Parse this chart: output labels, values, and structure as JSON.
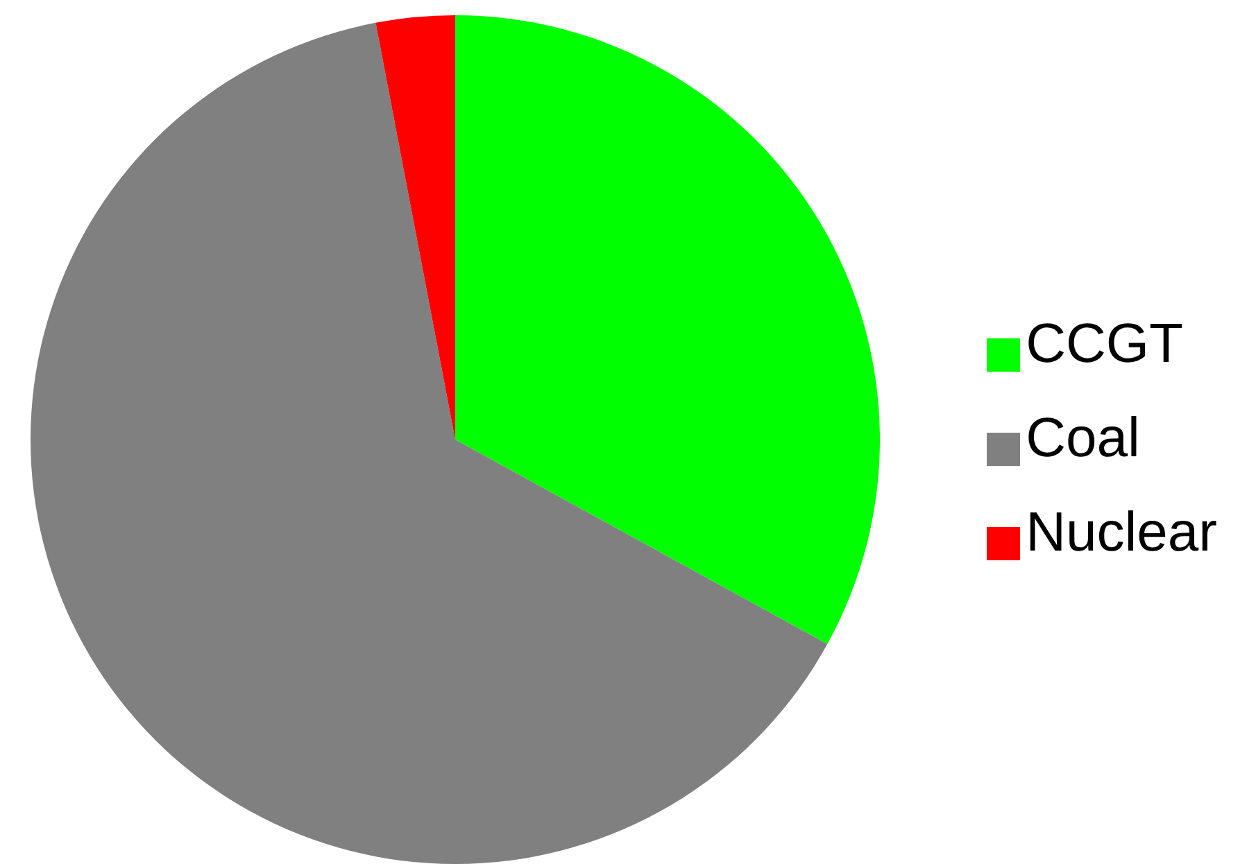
{
  "chart_data": {
    "type": "pie",
    "categories": [
      "CCGT",
      "Coal",
      "Nuclear"
    ],
    "values": [
      33,
      64,
      3
    ],
    "colors": [
      "#00ff00",
      "#808080",
      "#ff0000"
    ],
    "legend": "right"
  }
}
